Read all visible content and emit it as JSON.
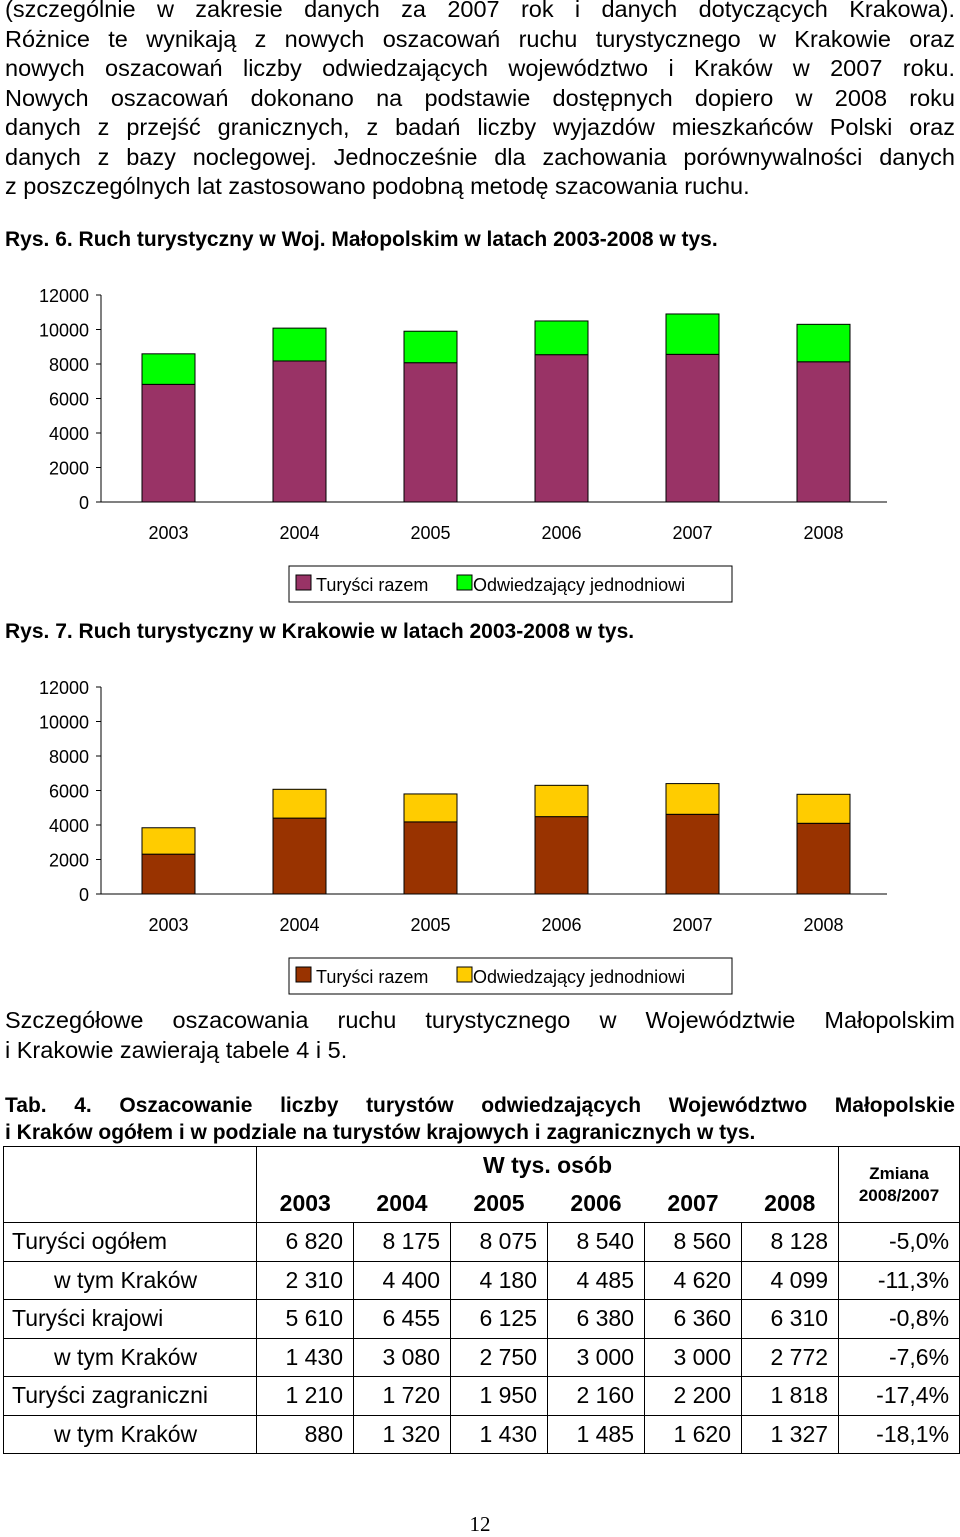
{
  "intro_paragraph": [
    "(szczególnie w zakresie danych za 2007 rok i danych dotyczących Krakowa).",
    "Różnice te wynikają z nowych oszacowań ruchu turystycznego w Krakowie oraz",
    "nowych oszacowań liczby odwiedzających województwo i Kraków w 2007 roku.",
    "Nowych oszacowań dokonano na podstawie dostępnych dopiero w 2008 roku",
    "danych z przejść granicznych, z badań liczby wyjazdów mieszkańców Polski oraz",
    "danych z bazy noclegowej. Jednocześnie dla zachowania porównywalności danych",
    "z poszczególnych lat zastosowano podobną metodę szacowania ruchu."
  ],
  "figure6_caption": "Rys. 6. Ruch turystyczny w Woj. Małopolskim w latach 2003-2008 w tys.",
  "figure7_caption": "Rys. 7. Ruch turystyczny w Krakowie w latach 2003-2008 w tys.",
  "chart_data": [
    {
      "type": "bar",
      "stacked": true,
      "title": "Rys. 6. Ruch turystyczny w Woj. Małopolskim w latach 2003-2008 w tys.",
      "categories": [
        "2003",
        "2004",
        "2005",
        "2006",
        "2007",
        "2008"
      ],
      "series": [
        {
          "name": "Turyści razem",
          "color": "#993366",
          "values": [
            6820,
            8175,
            8075,
            8540,
            8560,
            8128
          ]
        },
        {
          "name": "Odwiedzający jednodniowi",
          "color": "#00ff00",
          "values": [
            1770,
            1905,
            1825,
            1955,
            2340,
            2172
          ]
        }
      ],
      "ylim": [
        0,
        12000
      ],
      "yticks": [
        "0",
        "2000",
        "4000",
        "6000",
        "8000",
        "10000",
        "12000"
      ],
      "legend": "bottom",
      "grid": false
    },
    {
      "type": "bar",
      "stacked": true,
      "title": "Rys. 7. Ruch turystyczny w Krakowie w latach 2003-2008 w tys.",
      "categories": [
        "2003",
        "2004",
        "2005",
        "2006",
        "2007",
        "2008"
      ],
      "series": [
        {
          "name": "Turyści razem",
          "color": "#993300",
          "values": [
            2310,
            4400,
            4180,
            4485,
            4620,
            4099
          ]
        },
        {
          "name": "Odwiedzający jednodniowi",
          "color": "#ffcc00",
          "values": [
            1530,
            1670,
            1620,
            1815,
            1780,
            1681
          ]
        }
      ],
      "ylim": [
        0,
        12000
      ],
      "yticks": [
        "0",
        "2000",
        "4000",
        "6000",
        "8000",
        "10000",
        "12000"
      ],
      "legend": "bottom",
      "grid": false
    }
  ],
  "detail_paragraph": [
    "Szczegółowe oszacowania ruchu turystycznego w Województwie Małopolskim",
    "i Krakowie zawierają tabele 4 i 5."
  ],
  "table4_caption": [
    "Tab. 4. Oszacowanie liczby turystów odwiedzających Województwo Małopolskie",
    "i Kraków ogółem i w podziale na turystów krajowych i zagranicznych w tys."
  ],
  "table4": {
    "header_group": "W tys. osób",
    "change_header": [
      "Zmiana",
      "2008/2007"
    ],
    "years": [
      "2003",
      "2004",
      "2005",
      "2006",
      "2007",
      "2008"
    ],
    "rows": [
      {
        "label": "Turyści ogółem",
        "values": [
          "6 820",
          "8 175",
          "8 075",
          "8 540",
          "8 560",
          "8 128"
        ],
        "change": "-5,0%"
      },
      {
        "label": "w tym Kraków",
        "values": [
          "2 310",
          "4 400",
          "4 180",
          "4 485",
          "4 620",
          "4 099"
        ],
        "change": "-11,3%"
      },
      {
        "label": "Turyści krajowi",
        "values": [
          "5 610",
          "6 455",
          "6 125",
          "6 380",
          "6 360",
          "6 310"
        ],
        "change": "-0,8%"
      },
      {
        "label": "w tym Kraków",
        "values": [
          "1 430",
          "3 080",
          "2 750",
          "3 000",
          "3 000",
          "2 772"
        ],
        "change": "-7,6%"
      },
      {
        "label": "Turyści zagraniczni",
        "values": [
          "1 210",
          "1 720",
          "1 950",
          "2 160",
          "2 200",
          "1 818"
        ],
        "change": "-17,4%"
      },
      {
        "label": "w tym Kraków",
        "values": [
          "880",
          "1 320",
          "1 430",
          "1 485",
          "1 620",
          "1 327"
        ],
        "change": "-18,1%"
      }
    ]
  },
  "page_number": "12"
}
